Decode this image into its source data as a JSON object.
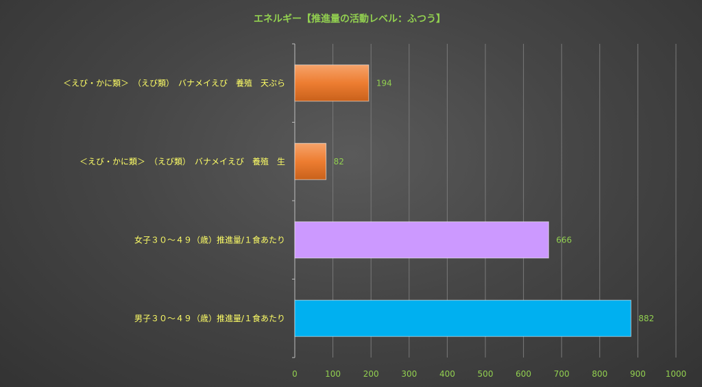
{
  "chart_data": {
    "type": "bar",
    "orientation": "horizontal",
    "title": "エネルギー【推進量の活動レベル：ふつう】",
    "categories": [
      "＜えび・かに類＞　（えび類）　バナメイえび　養殖　天ぷら",
      "＜えび・かに類＞　（えび類）　バナメイえび　養殖　生",
      "女子３０～４９（歳）推進量/１食あたり",
      "男子３０～４９（歳）推進量/１食あたり"
    ],
    "values": [
      194,
      82,
      666,
      882
    ],
    "xlim": [
      0,
      1000
    ],
    "xticks": [
      0,
      100,
      200,
      300,
      400,
      500,
      600,
      700,
      800,
      900,
      1000
    ],
    "grid": true,
    "legend": "none",
    "colors": {
      "bars": [
        "#ED7D31",
        "#ED7D31",
        "#CC99FF",
        "#00B0F0"
      ],
      "title": "#92D050",
      "category_text": "#FFFF66",
      "tick_text": "#92D050",
      "data_label_text": "#92D050",
      "gridline": "#7a7a7a",
      "axis": "#bfbfbf"
    }
  }
}
